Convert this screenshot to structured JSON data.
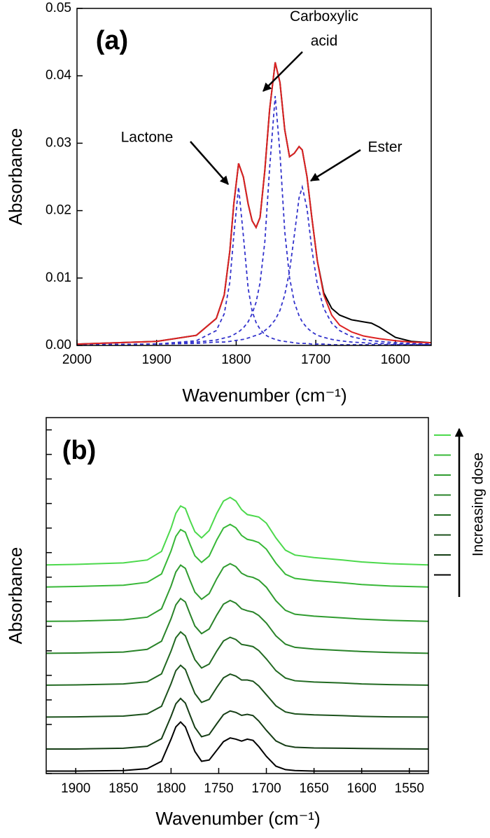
{
  "chart_data": [
    {
      "type": "line",
      "panel_label": "(a)",
      "x_label": "Wavenumber (cm⁻¹)",
      "y_label": "Absorbance",
      "x": [
        2000,
        1900,
        1850,
        1825,
        1815,
        1808,
        1803,
        1797,
        1791,
        1785,
        1780,
        1775,
        1770,
        1764,
        1758,
        1751,
        1745,
        1739,
        1733,
        1727,
        1721,
        1717,
        1711,
        1705,
        1698,
        1690,
        1680,
        1670,
        1655,
        1640,
        1630,
        1620,
        1600,
        1580,
        1555
      ],
      "series": [
        {
          "color": "#000000",
          "dash": false,
          "values": [
            0.0002,
            0.0006,
            0.0015,
            0.004,
            0.0075,
            0.014,
            0.021,
            0.027,
            0.025,
            0.021,
            0.0185,
            0.0175,
            0.019,
            0.026,
            0.035,
            0.042,
            0.039,
            0.032,
            0.028,
            0.0285,
            0.0295,
            0.029,
            0.025,
            0.019,
            0.0125,
            0.0078,
            0.0055,
            0.0045,
            0.0038,
            0.0035,
            0.0033,
            0.0027,
            0.0012,
            0.0006,
            0.0004
          ]
        },
        {
          "color": "#3333cc",
          "dash": true,
          "values": [
            0.0001,
            0.0002,
            0.0007,
            0.0022,
            0.0047,
            0.0094,
            0.0163,
            0.0235,
            0.0163,
            0.0085,
            0.0051,
            0.0034,
            0.0024,
            0.0016,
            0.0012,
            0.0009,
            0.0007,
            0.0006,
            0.0005,
            0.0004,
            0.0003,
            0.0003,
            0.0003,
            0.0002,
            0.0002,
            0.0002,
            0.0001,
            0.0001,
            0.0001,
            0.0001,
            0.0001,
            0.0001,
            0.0001,
            0.0001,
            0.0001
          ]
        },
        {
          "color": "#3333cc",
          "dash": true,
          "values": [
            0.0001,
            0.0002,
            0.0005,
            0.0008,
            0.0011,
            0.0013,
            0.0016,
            0.002,
            0.0026,
            0.0035,
            0.0047,
            0.0064,
            0.0093,
            0.0154,
            0.0263,
            0.037,
            0.0285,
            0.0169,
            0.0101,
            0.0064,
            0.0044,
            0.0035,
            0.0026,
            0.002,
            0.0015,
            0.0012,
            0.0009,
            0.0007,
            0.0005,
            0.0004,
            0.0003,
            0.0003,
            0.0002,
            0.0002,
            0.0001
          ]
        },
        {
          "color": "#3333cc",
          "dash": true,
          "values": [
            0.0001,
            0.0002,
            0.0003,
            0.0005,
            0.0005,
            0.0006,
            0.0007,
            0.0008,
            0.0009,
            0.0011,
            0.0013,
            0.0015,
            0.0017,
            0.0022,
            0.0028,
            0.0038,
            0.0052,
            0.0075,
            0.011,
            0.0163,
            0.0219,
            0.0235,
            0.0203,
            0.0143,
            0.009,
            0.0055,
            0.0033,
            0.0022,
            0.0013,
            0.0009,
            0.0007,
            0.0006,
            0.0004,
            0.0003,
            0.0002
          ]
        },
        {
          "color": "#dd2222",
          "dash": false,
          "values": [
            0.0002,
            0.0006,
            0.0015,
            0.004,
            0.0075,
            0.014,
            0.021,
            0.027,
            0.025,
            0.021,
            0.0185,
            0.0175,
            0.019,
            0.026,
            0.035,
            0.042,
            0.039,
            0.032,
            0.028,
            0.0285,
            0.0295,
            0.029,
            0.025,
            0.019,
            0.0125,
            0.0075,
            0.0045,
            0.003,
            0.002,
            0.0014,
            0.0012,
            0.001,
            0.0007,
            0.0005,
            0.0004
          ]
        }
      ],
      "annotations": [
        {
          "text": "Lactone"
        },
        {
          "text": [
            "Carboxylic",
            "acid"
          ]
        },
        {
          "text": "Ester"
        }
      ],
      "xlim": [
        2000,
        1555
      ],
      "xticks": [
        2000,
        1900,
        1800,
        1700,
        1600
      ],
      "ylim": [
        0,
        0.05
      ],
      "yticks": [
        {
          "value": 0,
          "label": "0.00"
        },
        0.01,
        0.02,
        0.03,
        0.04,
        0.05
      ],
      "show_ytick_labels": true,
      "legend": false
    },
    {
      "type": "line",
      "panel_label": "(b)",
      "x_label": "Wavenumber (cm⁻¹)",
      "y_label": "Absorbance",
      "x": [
        1931,
        1900,
        1850,
        1825,
        1810,
        1800,
        1795,
        1790,
        1785,
        1780,
        1775,
        1768,
        1760,
        1752,
        1745,
        1738,
        1732,
        1726,
        1720,
        1714,
        1708,
        1700,
        1690,
        1680,
        1670,
        1650,
        1620,
        1600,
        1570,
        1530
      ],
      "series": [
        {
          "color": "#000000",
          "values": [
            0.1,
            0.1,
            0.12,
            0.2,
            0.5,
            1.4,
            1.9,
            2.1,
            1.9,
            1.4,
            0.9,
            0.5,
            0.55,
            0.95,
            1.3,
            1.45,
            1.4,
            1.32,
            1.4,
            1.35,
            1.1,
            0.7,
            0.3,
            0.16,
            0.12,
            0.1,
            0.1,
            0.1,
            0.1,
            0.1
          ]
        },
        {
          "color": "#153d15",
          "values": [
            1,
            1,
            1.03,
            1.11,
            1.42,
            2.33,
            2.84,
            3.06,
            2.87,
            2.37,
            1.88,
            1.5,
            1.59,
            2.03,
            2.4,
            2.55,
            2.49,
            2.37,
            2.41,
            2.36,
            2.14,
            1.76,
            1.33,
            1.14,
            1.07,
            1.04,
            1.03,
            1.02,
            1.01,
            1
          ]
        },
        {
          "color": "#1c521c",
          "values": [
            2.3,
            2.31,
            2.34,
            2.43,
            2.74,
            3.66,
            4.19,
            4.41,
            4.24,
            3.74,
            3.26,
            2.9,
            3.02,
            3.51,
            3.9,
            4.05,
            3.97,
            3.81,
            3.81,
            3.76,
            3.57,
            3.21,
            2.76,
            2.51,
            2.43,
            2.39,
            2.36,
            2.33,
            2.31,
            2.3
          ]
        },
        {
          "color": "#226a22",
          "values": [
            3.6,
            3.61,
            3.65,
            3.74,
            4.06,
            4.99,
            5.53,
            5.77,
            5.61,
            5.11,
            4.64,
            4.3,
            4.46,
            4.99,
            5.4,
            5.55,
            5.46,
            5.26,
            5.22,
            5.17,
            5.01,
            4.67,
            4.19,
            3.89,
            3.78,
            3.73,
            3.69,
            3.65,
            3.62,
            3.6
          ]
        },
        {
          "color": "#298329",
          "values": [
            4.9,
            4.91,
            4.95,
            5.06,
            5.39,
            6.31,
            6.87,
            7.13,
            6.99,
            6.49,
            6.01,
            5.7,
            5.89,
            6.46,
            6.9,
            7.05,
            6.94,
            6.71,
            6.63,
            6.58,
            6.44,
            6.13,
            5.61,
            5.27,
            5.14,
            5.07,
            5.01,
            4.97,
            4.93,
            4.9
          ]
        },
        {
          "color": "#309c30",
          "values": [
            6.2,
            6.21,
            6.26,
            6.37,
            6.71,
            7.64,
            8.21,
            8.49,
            8.36,
            7.86,
            7.39,
            7.1,
            7.33,
            7.94,
            8.4,
            8.55,
            8.43,
            8.16,
            8.04,
            7.99,
            7.88,
            7.59,
            7.04,
            6.65,
            6.49,
            6.41,
            6.34,
            6.29,
            6.24,
            6.2
          ]
        },
        {
          "color": "#38b838",
          "values": [
            7.6,
            7.62,
            7.67,
            7.79,
            8.13,
            9.07,
            9.66,
            9.94,
            9.83,
            9.33,
            8.87,
            8.6,
            8.86,
            9.52,
            10.0,
            10.15,
            10.01,
            9.7,
            9.54,
            9.49,
            9.41,
            9.14,
            8.57,
            8.12,
            7.95,
            7.86,
            7.77,
            7.7,
            7.64,
            7.6
          ]
        },
        {
          "color": "#4cd94c",
          "values": [
            8.5,
            8.52,
            8.58,
            8.7,
            9.05,
            10.0,
            10.6,
            10.9,
            10.8,
            10.3,
            9.85,
            9.6,
            9.9,
            10.6,
            11.1,
            11.25,
            11.1,
            10.75,
            10.55,
            10.5,
            10.45,
            10.2,
            9.6,
            9.1,
            8.9,
            8.8,
            8.7,
            8.62,
            8.55,
            8.5
          ]
        }
      ],
      "annotations": [
        {
          "text": "Increasing dose"
        }
      ],
      "xlim": [
        1931,
        1530
      ],
      "xticks": [
        1900,
        1850,
        1800,
        1750,
        1700,
        1650,
        1600,
        1550
      ],
      "ylim": [
        0,
        14.5
      ],
      "yticks": [
        0,
        1,
        2,
        3,
        4,
        5,
        6,
        7,
        8,
        9,
        10,
        11,
        12,
        13,
        14
      ],
      "show_ytick_labels": false,
      "legend": "right"
    }
  ]
}
